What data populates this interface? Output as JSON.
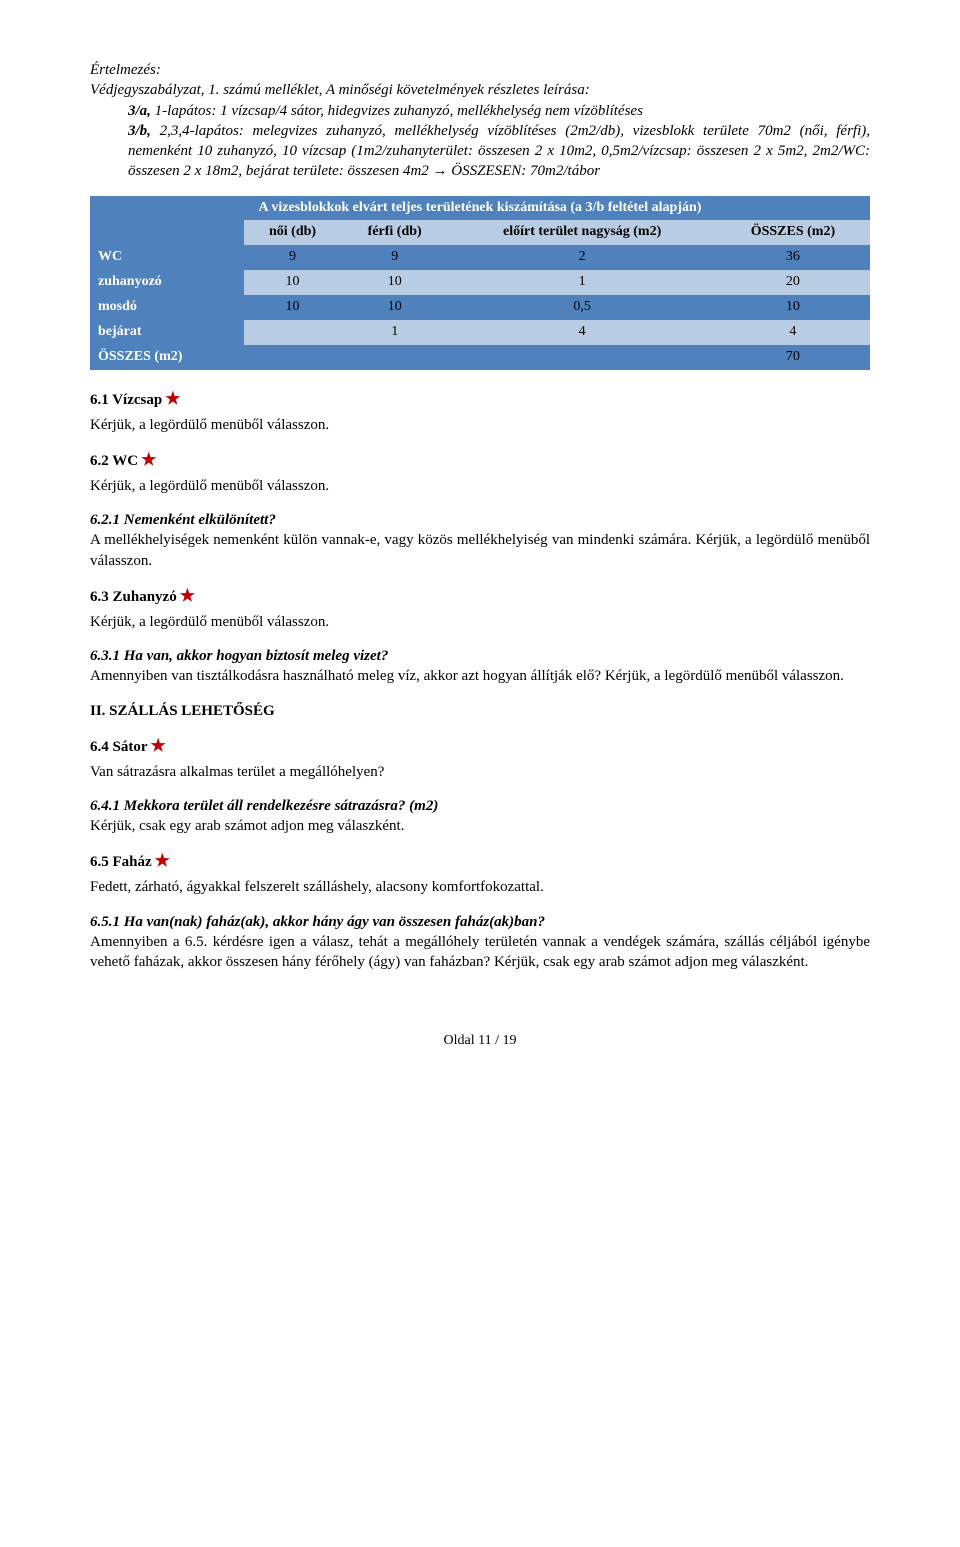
{
  "interpretation": {
    "title": "Értelmezés:",
    "line1": "Védjegyszabályzat, 1. számú melléklet, A minőségi követelmények részletes leírása:",
    "p3a_label": "3/a,",
    "p3a_text": " 1-lapátos: 1 vízcsap/4 sátor, hidegvizes zuhanyzó, mellékhelység nem vízöblítéses",
    "p3b_label": "3/b,",
    "p3b_text": " 2,3,4-lapátos: melegvizes zuhanyzó, mellékhelység vízöblítéses (2m2/db), vizesblokk területe 70m2 (női, férfi), nemenként 10 zuhanyzó, 10 vízcsap (1m2/zuhanyterület: összesen 2 x 10m2, 0,5m2/vízcsap: összesen 2 x 5m2, 2m2/WC: összesen 2 x 18m2, bejárat területe: összesen 4m2 → ÖSSZESEN: 70m2/tábor"
  },
  "table": {
    "caption": "A vizesblokkok elvárt teljes területének kiszámítása (a 3/b feltétel alapján)",
    "headers": {
      "h1": "női (db)",
      "h2": "férfi (db)",
      "h3": "előírt terület nagyság (m2)",
      "h4": "ÖSSZES (m2)"
    },
    "rows": {
      "wc": {
        "label": "WC",
        "c1": "9",
        "c2": "9",
        "c3": "2",
        "c4": "36"
      },
      "zuhany": {
        "label": "zuhanyozó",
        "c1": "10",
        "c2": "10",
        "c3": "1",
        "c4": "20"
      },
      "mosdo": {
        "label": "mosdó",
        "c1": "10",
        "c2": "10",
        "c3": "0,5",
        "c4": "10"
      },
      "bejarat": {
        "label": "bejárat",
        "c1": "",
        "c2": "1",
        "c3": "4",
        "c4": "4"
      },
      "osszes": {
        "label": "ÖSSZES (m2)",
        "c1": "",
        "c2": "",
        "c3": "",
        "c4": "70"
      }
    },
    "colors": {
      "dark_bg": "#4f81bd",
      "light_bg": "#b8cce4",
      "header_text": "#ffffff"
    }
  },
  "sections": {
    "s61": {
      "title": "6.1 Vízcsap",
      "body": "Kérjük, a legördülő menüből válasszon."
    },
    "s62": {
      "title": "6.2 WC",
      "body": "Kérjük, a legördülő menüből válasszon."
    },
    "s621": {
      "title": "6.2.1 Nemenként elkülönített?",
      "body": "A mellékhelyiségek nemenként külön vannak-e, vagy közös mellékhelyiség van mindenki számára. Kérjük, a legördülő menüből válasszon."
    },
    "s63": {
      "title": "6.3 Zuhanyzó",
      "body": "Kérjük, a legördülő menüből válasszon."
    },
    "s631": {
      "title": "6.3.1 Ha van, akkor hogyan biztosít meleg vizet?",
      "body": "Amennyiben van tisztálkodásra használható meleg víz, akkor azt hogyan állítják elő? Kérjük, a legördülő menüből válasszon."
    },
    "II": {
      "title": "II. SZÁLLÁS LEHETŐSÉG"
    },
    "s64": {
      "title": "6.4 Sátor",
      "body": "Van sátrazásra alkalmas terület a megállóhelyen?"
    },
    "s641": {
      "title": "6.4.1 Mekkora terület áll rendelkezésre sátrazásra? (m2)",
      "body": "Kérjük, csak egy arab számot adjon meg válaszként."
    },
    "s65": {
      "title": "6.5 Faház",
      "body": "Fedett, zárható, ágyakkal felszerelt szálláshely, alacsony komfortfokozattal."
    },
    "s651": {
      "title": "6.5.1 Ha van(nak) faház(ak), akkor hány ágy van összesen faház(ak)ban?",
      "body": "Amennyiben a 6.5. kérdésre igen a válasz, tehát a megállóhely területén vannak a vendégek számára, szállás céljából igénybe vehető faházak, akkor összesen hány férőhely (ágy) van faházban? Kérjük, csak egy arab számot adjon meg válaszként."
    }
  },
  "star": "★",
  "footer": "Oldal 11 / 19"
}
